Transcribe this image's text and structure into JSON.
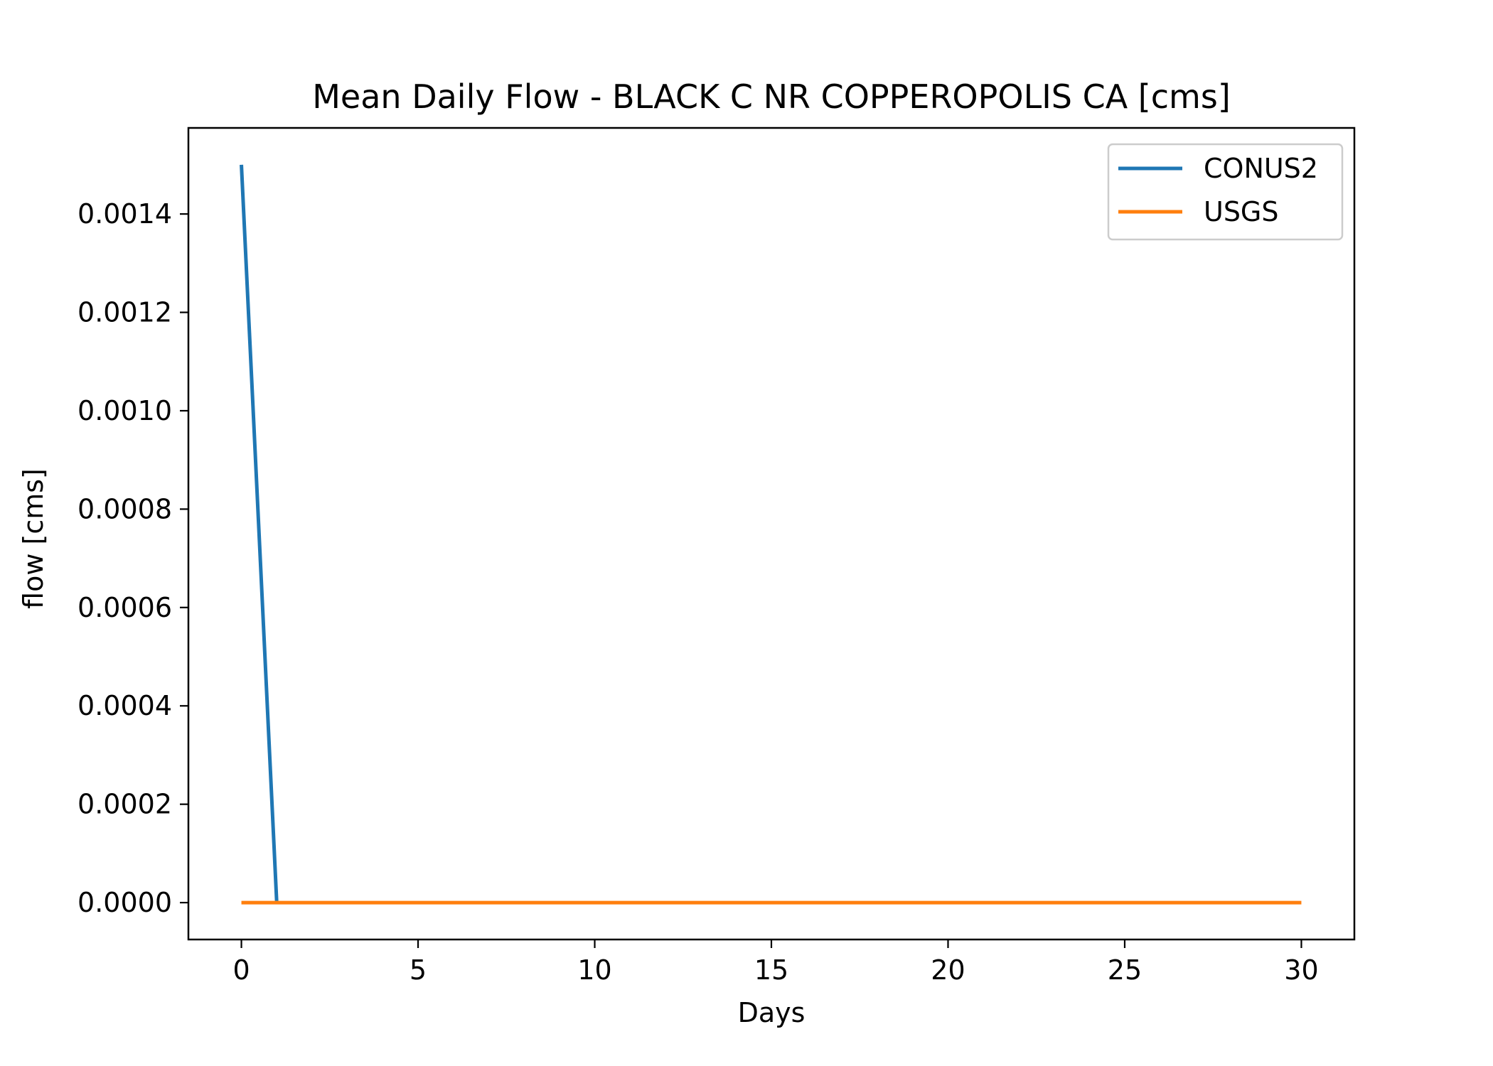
{
  "chart_data": {
    "type": "line",
    "title": "Mean Daily Flow - BLACK C NR COPPEROPOLIS CA [cms]",
    "xlabel": "Days",
    "ylabel": "flow [cms]",
    "xlim": [
      -1.5,
      31.5
    ],
    "ylim": [
      -7.5e-05,
      0.001575
    ],
    "xticks": [
      0,
      5,
      10,
      15,
      20,
      25,
      30
    ],
    "xtick_labels": [
      "0",
      "5",
      "10",
      "15",
      "20",
      "25",
      "30"
    ],
    "yticks": [
      0.0,
      0.0002,
      0.0004,
      0.0006,
      0.0008,
      0.001,
      0.0012,
      0.0014
    ],
    "ytick_labels": [
      "0.0000",
      "0.0002",
      "0.0004",
      "0.0006",
      "0.0008",
      "0.0010",
      "0.0012",
      "0.0014"
    ],
    "grid": false,
    "legend_position": "top-right",
    "series": [
      {
        "name": "CONUS2",
        "color": "#1f77b4",
        "x": [
          0,
          1
        ],
        "y": [
          0.0015,
          0.0
        ]
      },
      {
        "name": "USGS",
        "color": "#ff7f0e",
        "x": [
          0,
          30
        ],
        "y": [
          0.0,
          0.0
        ]
      }
    ]
  }
}
